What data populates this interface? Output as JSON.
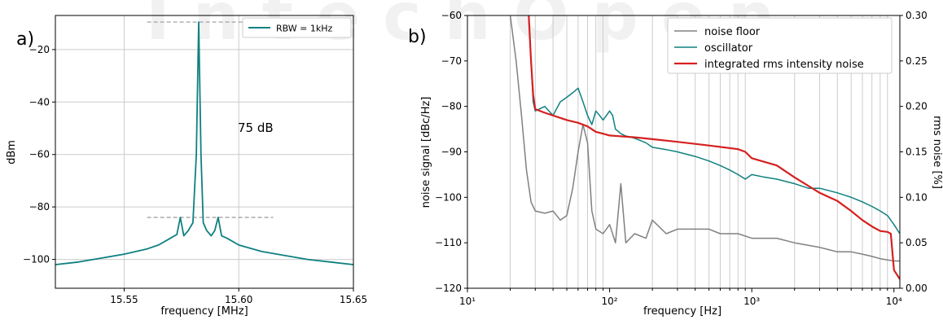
{
  "colors": {
    "teal": "#0f8080",
    "gray": "#808080",
    "red": "#d62020",
    "grid": "#cccccc",
    "dashed": "#999999",
    "watermark": "#f1f1f1"
  },
  "watermark_text": "IntechOpen",
  "chart_data": [
    {
      "panel_label": "a)",
      "type": "line",
      "xlabel": "frequency [MHz]",
      "ylabel": "dBm",
      "xlim": [
        15.52,
        15.65
      ],
      "ylim": [
        -111,
        -7
      ],
      "xticks": [
        15.55,
        15.6,
        15.65
      ],
      "xtick_labels": [
        "15.55",
        "15.60",
        "15.65"
      ],
      "yticks": [
        -20,
        -40,
        -60,
        -80,
        -100
      ],
      "ytick_labels": [
        "−20",
        "−40",
        "−60",
        "−80",
        "−100"
      ],
      "grid": true,
      "legend_position": "top-right",
      "annotation": "75 dB",
      "reference_lines": [
        {
          "y": -9.5,
          "x_from": 15.56,
          "x_to": 15.612,
          "style": "dashed"
        },
        {
          "y": -84,
          "x_from": 15.56,
          "x_to": 15.615,
          "style": "dashed"
        }
      ],
      "series": [
        {
          "name": "RBW = 1kHz",
          "color": "#0f8080",
          "x": [
            15.52,
            15.53,
            15.54,
            15.55,
            15.56,
            15.565,
            15.57,
            15.573,
            15.5745,
            15.576,
            15.578,
            15.58,
            15.5815,
            15.5825,
            15.5835,
            15.5845,
            15.586,
            15.588,
            15.5895,
            15.591,
            15.5925,
            15.595,
            15.6,
            15.61,
            15.62,
            15.63,
            15.64,
            15.65
          ],
          "y": [
            -102,
            -101,
            -99.5,
            -98,
            -96,
            -94.5,
            -92,
            -90.5,
            -84,
            -91,
            -89,
            -86,
            -60,
            -9.5,
            -60,
            -86,
            -89,
            -91,
            -89,
            -84,
            -91,
            -92,
            -94.5,
            -97,
            -98.5,
            -100,
            -101,
            -102
          ]
        }
      ]
    },
    {
      "panel_label": "b)",
      "type": "line",
      "xlabel": "frequency [Hz]",
      "ylabel": "noise signal [dBc/Hz]",
      "ylabel_right": "rms noise [%]",
      "xscale": "log",
      "xlim": [
        10,
        11000
      ],
      "ylim": [
        -120,
        -60
      ],
      "ylim_right": [
        0,
        0.3
      ],
      "xtick_labels": [
        "10¹",
        "10²",
        "10³",
        "10⁴"
      ],
      "ytick_labels": [
        "−60",
        "−70",
        "−80",
        "−90",
        "−100",
        "−110",
        "−120"
      ],
      "ytick_labels_right": [
        "0.30",
        "0.25",
        "0.20",
        "0.15",
        "0.10",
        "0.05",
        "0.00"
      ],
      "grid": "vertical-log",
      "legend_position": "top-right",
      "series": [
        {
          "name": "noise floor",
          "color": "#808080",
          "x": [
            20,
            22,
            24,
            26,
            28,
            30,
            35,
            40,
            45,
            50,
            55,
            60,
            65,
            70,
            75,
            80,
            90,
            100,
            110,
            120,
            130,
            150,
            180,
            200,
            250,
            300,
            400,
            500,
            600,
            700,
            800,
            1000,
            1500,
            2000,
            3000,
            4000,
            5000,
            6000,
            7000,
            8000,
            10000,
            11000
          ],
          "y": [
            -60,
            -70,
            -82,
            -94,
            -101,
            -103,
            -103.5,
            -103,
            -105,
            -104,
            -98,
            -90,
            -84,
            -88,
            -103,
            -107,
            -108,
            -106,
            -110,
            -97,
            -110,
            -108,
            -109,
            -105,
            -108,
            -107,
            -107,
            -107,
            -108,
            -108,
            -108,
            -109,
            -109,
            -110,
            -111,
            -112,
            -112,
            -112.5,
            -113,
            -113.5,
            -114,
            -114
          ]
        },
        {
          "name": "oscillator",
          "color": "#0f8080",
          "x": [
            27,
            28,
            29,
            30,
            35,
            40,
            45,
            50,
            55,
            60,
            65,
            70,
            75,
            80,
            85,
            90,
            95,
            100,
            105,
            110,
            120,
            130,
            150,
            180,
            200,
            250,
            300,
            400,
            500,
            600,
            700,
            800,
            900,
            1000,
            1200,
            1500,
            2000,
            2500,
            3000,
            4000,
            5000,
            6000,
            7000,
            8000,
            9000,
            10000,
            11000
          ],
          "y": [
            -60,
            -70,
            -79,
            -81,
            -80,
            -82,
            -79,
            -78,
            -77,
            -76,
            -79,
            -82,
            -84,
            -81,
            -82,
            -83,
            -82,
            -81,
            -82,
            -85,
            -86,
            -86.5,
            -87,
            -88,
            -89,
            -89.5,
            -90,
            -91,
            -92,
            -93,
            -94,
            -95,
            -96,
            -95,
            -95.5,
            -96,
            -97,
            -98,
            -98,
            -99,
            -100,
            -101,
            -102,
            -103,
            -104,
            -106,
            -108
          ]
        },
        {
          "name": "integrated rms intensity noise",
          "color": "#d62020",
          "axis": "right",
          "x": [
            27,
            28,
            29,
            30,
            35,
            40,
            50,
            60,
            70,
            80,
            90,
            100,
            150,
            200,
            300,
            500,
            800,
            900,
            1000,
            1500,
            2000,
            3000,
            4000,
            5000,
            6000,
            7000,
            8000,
            9000,
            9500,
            10000,
            11000
          ],
          "y": [
            0.3,
            0.25,
            0.213,
            0.197,
            0.193,
            0.19,
            0.185,
            0.182,
            0.178,
            0.172,
            0.17,
            0.168,
            0.166,
            0.164,
            0.161,
            0.157,
            0.153,
            0.15,
            0.143,
            0.135,
            0.122,
            0.105,
            0.096,
            0.085,
            0.075,
            0.068,
            0.063,
            0.062,
            0.06,
            0.02,
            0.01
          ]
        }
      ]
    }
  ]
}
